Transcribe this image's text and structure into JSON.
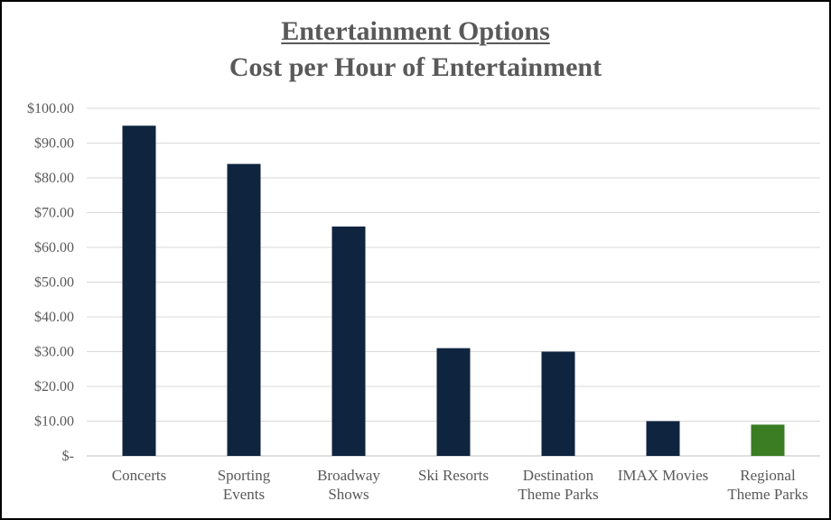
{
  "chart_data": {
    "type": "bar",
    "title": "Entertainment Options",
    "subtitle": "Cost per Hour of Entertainment",
    "xlabel": "",
    "ylabel": "",
    "ylim": [
      0,
      100
    ],
    "yticks": [
      0,
      10,
      20,
      30,
      40,
      50,
      60,
      70,
      80,
      90,
      100
    ],
    "ytick_labels": [
      "$-",
      "$10.00",
      "$20.00",
      "$30.00",
      "$40.00",
      "$50.00",
      "$60.00",
      "$70.00",
      "$80.00",
      "$90.00",
      "$100.00"
    ],
    "grid": true,
    "categories": [
      [
        "Concerts"
      ],
      [
        "Sporting",
        "Events"
      ],
      [
        "Broadway",
        "Shows"
      ],
      [
        "Ski Resorts"
      ],
      [
        "Destination",
        "Theme Parks"
      ],
      [
        "IMAX Movies"
      ],
      [
        "Regional",
        "Theme Parks"
      ]
    ],
    "values": [
      95,
      84,
      66,
      31,
      30,
      10,
      9
    ],
    "colors": [
      "#0f243e",
      "#0f243e",
      "#0f243e",
      "#0f243e",
      "#0f243e",
      "#0f243e",
      "#3a7d23"
    ]
  }
}
